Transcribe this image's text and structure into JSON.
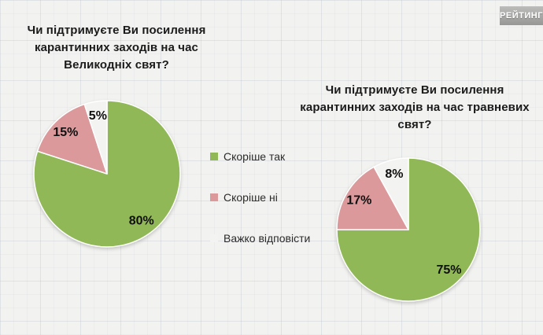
{
  "logo": {
    "text": "РЕЙТИНГ"
  },
  "legend": {
    "items": [
      {
        "label": "Скоріше так",
        "color": "#91B857"
      },
      {
        "label": "Скоріше ні",
        "color": "#DB999B"
      },
      {
        "label": "Важко відповісти",
        "color": "#F3F3F1"
      }
    ]
  },
  "chart_data": [
    {
      "type": "pie",
      "title": "Чи підтримуєте Ви посилення карантинних заходів на час Великодніх свят?",
      "categories": [
        "Скоріше так",
        "Скоріше ні",
        "Важко відповісти"
      ],
      "values": [
        80,
        15,
        5
      ],
      "colors": [
        "#91B857",
        "#DB999B",
        "#F3F3F1"
      ],
      "data_labels": [
        "80%",
        "15%",
        "5%"
      ],
      "start_angle": 0,
      "direction": "clockwise",
      "legend_position": "right-center"
    },
    {
      "type": "pie",
      "title": "Чи підтримуєте Ви посилення карантинних заходів на час травневих свят?",
      "categories": [
        "Скоріше так",
        "Скоріше ні",
        "Важко відповісти"
      ],
      "values": [
        75,
        17,
        8
      ],
      "colors": [
        "#91B857",
        "#DB999B",
        "#F3F3F1"
      ],
      "data_labels": [
        "75%",
        "17%",
        "8%"
      ],
      "start_angle": 0,
      "direction": "clockwise",
      "legend_position": "left-center"
    }
  ]
}
